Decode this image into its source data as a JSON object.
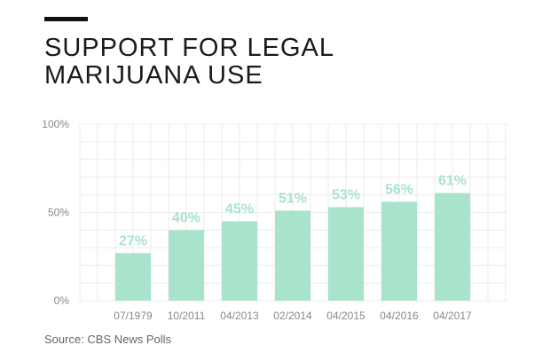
{
  "header": {
    "title_line1": "SUPPORT FOR LEGAL",
    "title_line2": "MARIJUANA USE"
  },
  "footer": {
    "source": "Source: CBS News Polls"
  },
  "colors": {
    "bar": "#a8e3cc",
    "label": "#a8e3cc",
    "grid": "#ebebeb",
    "tick_text": "#888888"
  },
  "chart_data": {
    "type": "bar",
    "title": "SUPPORT FOR LEGAL MARIJUANA USE",
    "xlabel": "",
    "ylabel": "",
    "categories": [
      "07/1979",
      "10/2011",
      "04/2013",
      "02/2014",
      "04/2015",
      "04/2016",
      "04/2017"
    ],
    "values": [
      27,
      40,
      45,
      51,
      53,
      56,
      61
    ],
    "data_labels": [
      "27%",
      "40%",
      "45%",
      "51%",
      "53%",
      "56%",
      "61%"
    ],
    "ylim": [
      0,
      100
    ],
    "yticks": [
      0,
      50,
      100
    ],
    "ytick_labels": [
      "0%",
      "50%",
      "100%"
    ],
    "grid": true,
    "legend": "none"
  }
}
